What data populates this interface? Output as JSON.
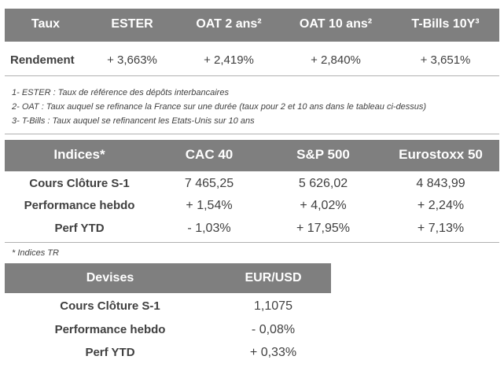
{
  "taux_table": {
    "headers": [
      "Taux",
      "ESTER",
      "OAT 2 ans²",
      "OAT 10 ans²",
      "T-Bills 10Y³"
    ],
    "row_label": "Rendement",
    "values": [
      "+ 3,663%",
      "+ 2,419%",
      "+ 2,840%",
      "+ 3,651%"
    ]
  },
  "footnotes": [
    "1- ESTER : Taux de référence des dépôts interbancaires",
    "2- OAT : Taux auquel se refinance la France sur une durée (taux pour 2 et 10 ans dans le tableau ci-dessus)",
    "3- T-Bills : Taux auquel se refinancent les Etats-Unis sur 10 ans"
  ],
  "indices_table": {
    "headers": [
      "Indices*",
      "CAC 40",
      "S&P 500",
      "Eurostoxx 50"
    ],
    "rows": [
      {
        "label": "Cours Clôture S-1",
        "values": [
          "7 465,25",
          "5 626,02",
          "4 843,99"
        ]
      },
      {
        "label": "Performance hebdo",
        "values": [
          "+ 1,54%",
          "+ 4,02%",
          "+ 2,24%"
        ]
      },
      {
        "label": "Perf YTD",
        "values": [
          "- 1,03%",
          "+ 17,95%",
          "+ 7,13%"
        ]
      }
    ],
    "note": "* Indices TR"
  },
  "devises_table": {
    "headers": [
      "Devises",
      "EUR/USD"
    ],
    "rows": [
      {
        "label": "Cours Clôture S-1",
        "value": "1,1075"
      },
      {
        "label": "Performance hebdo",
        "value": "- 0,08%"
      },
      {
        "label": "Perf YTD",
        "value": "+ 0,33%"
      }
    ]
  }
}
